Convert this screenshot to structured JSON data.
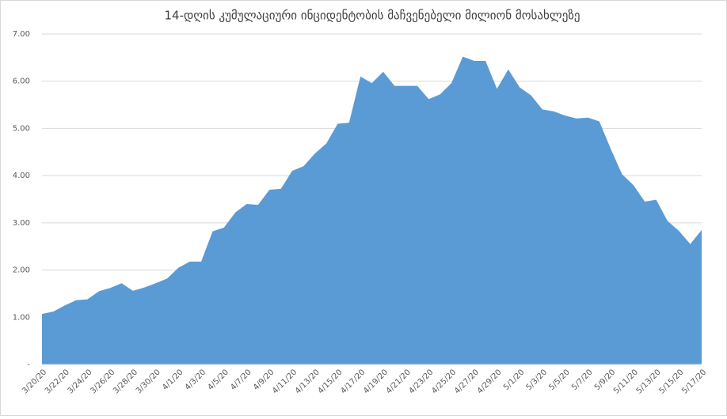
{
  "chart_data": {
    "type": "area",
    "title": "14-დღის კუმულაციური ინციდენტობის მაჩვენებელი მილიონ მოსახლეზე",
    "categories": [
      "3/20/20",
      null,
      "3/22/20",
      null,
      "3/24/20",
      null,
      "3/26/20",
      null,
      "3/28/20",
      null,
      "3/30/20",
      null,
      "4/1/20",
      null,
      "4/3/20",
      null,
      "4/5/20",
      null,
      "4/7/20",
      null,
      "4/9/20",
      null,
      "4/11/20",
      null,
      "4/13/20",
      null,
      "4/15/20",
      null,
      "4/17/20",
      null,
      "4/19/20",
      null,
      "4/21/20",
      null,
      "4/23/20",
      null,
      "4/25/20",
      null,
      "4/27/20",
      null,
      "4/29/20",
      null,
      "5/1/20",
      null,
      "5/3/20",
      null,
      "5/5/20",
      null,
      "5/7/20",
      null,
      "5/9/20",
      null,
      "5/11/20",
      null,
      "5/13/20",
      null,
      "5/15/20",
      null,
      "5/17/20"
    ],
    "values": [
      1.07,
      1.12,
      1.25,
      1.36,
      1.38,
      1.55,
      1.62,
      1.72,
      1.56,
      1.63,
      1.72,
      1.82,
      2.05,
      2.18,
      2.18,
      2.82,
      2.9,
      3.22,
      3.4,
      3.38,
      3.7,
      3.72,
      4.1,
      4.2,
      4.47,
      4.68,
      5.1,
      5.12,
      6.1,
      5.96,
      6.2,
      5.9,
      5.9,
      5.9,
      5.62,
      5.72,
      5.96,
      6.52,
      6.43,
      6.43,
      5.84,
      6.25,
      5.87,
      5.7,
      5.4,
      5.36,
      5.27,
      5.21,
      5.23,
      5.15,
      4.57,
      4.03,
      3.8,
      3.45,
      3.49,
      3.04,
      2.83,
      2.55,
      2.85
    ],
    "color": "#5b9bd5",
    "ylim": [
      0,
      7
    ],
    "yticks": [
      {
        "value": 0,
        "label": "-"
      },
      {
        "value": 1,
        "label": "1.00"
      },
      {
        "value": 2,
        "label": "2.00"
      },
      {
        "value": 3,
        "label": "3.00"
      },
      {
        "value": 4,
        "label": "4.00"
      },
      {
        "value": 5,
        "label": "5.00"
      },
      {
        "value": 6,
        "label": "6.00"
      },
      {
        "value": 7,
        "label": "7.00"
      }
    ],
    "grid": true
  }
}
